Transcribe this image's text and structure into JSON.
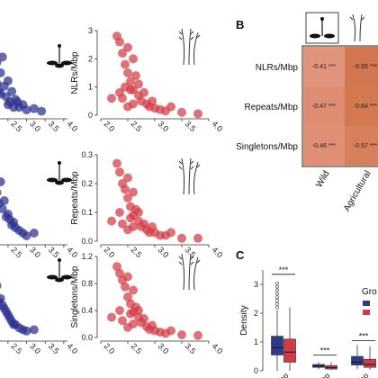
{
  "panels": {
    "b_label": "B",
    "c_label": "C"
  },
  "chart_data": [
    {
      "id": "wild_nlrs",
      "type": "scatter",
      "series": [
        {
          "color": "#2b2f8f",
          "points": [
            [
              2.0,
              1.8
            ],
            [
              2.1,
              2.6
            ],
            [
              2.15,
              1.4
            ],
            [
              2.2,
              2.0
            ],
            [
              2.25,
              0.9
            ],
            [
              2.3,
              1.6
            ],
            [
              2.35,
              2.2
            ],
            [
              2.4,
              1.1
            ],
            [
              2.45,
              0.7
            ],
            [
              2.5,
              1.3
            ],
            [
              2.55,
              0.5
            ],
            [
              2.6,
              0.9
            ],
            [
              2.7,
              0.6
            ],
            [
              2.8,
              0.3
            ],
            [
              2.9,
              0.4
            ],
            [
              3.0,
              0.2
            ],
            [
              3.2,
              0.25
            ],
            [
              3.4,
              0.15
            ],
            [
              2.05,
              3.0
            ],
            [
              2.2,
              1.2
            ],
            [
              2.3,
              0.8
            ],
            [
              2.5,
              0.4
            ],
            [
              2.65,
              0.3
            ],
            [
              2.75,
              0.5
            ]
          ]
        }
      ],
      "x_ticks": [
        "2.5",
        "3.0",
        "3.5",
        "4.0"
      ]
    },
    {
      "id": "agri_nlrs",
      "type": "scatter",
      "ylabel": "NLRs/Mbp",
      "ylim": [
        0,
        3
      ],
      "y_ticks": [
        "0",
        "1",
        "2",
        "3"
      ],
      "xlim": [
        2.0,
        4.0
      ],
      "x_ticks": [
        "2.0",
        "2.5",
        "3.0",
        "3.5",
        "4.0"
      ],
      "series": [
        {
          "color": "#d23b45",
          "points": [
            [
              2.3,
              2.8
            ],
            [
              2.35,
              2.6
            ],
            [
              2.4,
              2.2
            ],
            [
              2.45,
              1.8
            ],
            [
              2.5,
              2.4
            ],
            [
              2.5,
              1.5
            ],
            [
              2.55,
              1.2
            ],
            [
              2.6,
              2.0
            ],
            [
              2.6,
              0.9
            ],
            [
              2.65,
              1.4
            ],
            [
              2.7,
              0.7
            ],
            [
              2.7,
              1.1
            ],
            [
              2.75,
              0.5
            ],
            [
              2.8,
              0.8
            ],
            [
              2.85,
              0.4
            ],
            [
              2.9,
              0.3
            ],
            [
              3.0,
              0.25
            ],
            [
              3.1,
              0.2
            ],
            [
              3.2,
              0.15
            ],
            [
              3.3,
              0.3
            ],
            [
              3.5,
              0.1
            ],
            [
              3.8,
              0.05
            ],
            [
              2.4,
              0.6
            ],
            [
              2.5,
              0.3
            ],
            [
              2.55,
              0.9
            ],
            [
              2.45,
              1.0
            ],
            [
              2.35,
              0.8
            ],
            [
              2.6,
              0.4
            ],
            [
              2.2,
              0.6
            ],
            [
              2.95,
              0.5
            ]
          ]
        }
      ]
    },
    {
      "id": "wild_repeats",
      "type": "scatter",
      "x_ticks": [
        "2.5",
        "3.0",
        "3.5",
        "4.0"
      ],
      "series": [
        {
          "color": "#2b2f8f",
          "points": [
            [
              2.0,
              0.25
            ],
            [
              2.1,
              0.3
            ],
            [
              2.15,
              0.2
            ],
            [
              2.2,
              0.18
            ],
            [
              2.3,
              0.22
            ],
            [
              2.35,
              0.12
            ],
            [
              2.4,
              0.15
            ],
            [
              2.5,
              0.1
            ],
            [
              2.55,
              0.08
            ],
            [
              2.6,
              0.06
            ],
            [
              2.7,
              0.05
            ],
            [
              2.8,
              0.04
            ],
            [
              2.9,
              0.03
            ],
            [
              3.0,
              0.02
            ],
            [
              3.2,
              0.03
            ],
            [
              2.25,
              0.14
            ],
            [
              2.45,
              0.09
            ],
            [
              2.65,
              0.07
            ]
          ]
        }
      ]
    },
    {
      "id": "agri_repeats",
      "type": "scatter",
      "ylabel": "Repeats/Mbp",
      "ylim": [
        0,
        0.3
      ],
      "y_ticks": [
        "0.0",
        "0.1",
        "0.2",
        "0.3"
      ],
      "xlim": [
        2.0,
        4.0
      ],
      "x_ticks": [
        "2.0",
        "2.5",
        "3.0",
        "3.5",
        "4.0"
      ],
      "series": [
        {
          "color": "#d23b45",
          "points": [
            [
              2.3,
              0.27
            ],
            [
              2.35,
              0.24
            ],
            [
              2.4,
              0.2
            ],
            [
              2.45,
              0.18
            ],
            [
              2.5,
              0.22
            ],
            [
              2.5,
              0.15
            ],
            [
              2.55,
              0.12
            ],
            [
              2.6,
              0.17
            ],
            [
              2.6,
              0.09
            ],
            [
              2.65,
              0.11
            ],
            [
              2.7,
              0.07
            ],
            [
              2.7,
              0.1
            ],
            [
              2.75,
              0.05
            ],
            [
              2.8,
              0.06
            ],
            [
              2.85,
              0.04
            ],
            [
              2.9,
              0.03
            ],
            [
              3.0,
              0.03
            ],
            [
              3.1,
              0.02
            ],
            [
              3.2,
              0.02
            ],
            [
              3.3,
              0.03
            ],
            [
              3.5,
              0.01
            ],
            [
              3.8,
              0.01
            ],
            [
              2.4,
              0.06
            ],
            [
              2.5,
              0.04
            ],
            [
              2.55,
              0.08
            ],
            [
              2.35,
              0.1
            ],
            [
              2.6,
              0.05
            ],
            [
              2.2,
              0.07
            ],
            [
              2.95,
              0.05
            ]
          ]
        }
      ]
    },
    {
      "id": "wild_singletons",
      "type": "scatter",
      "x_ticks": [
        "2.5",
        "3.0",
        "3.5",
        "4.0"
      ],
      "series": [
        {
          "color": "#2b2f8f",
          "points": [
            [
              2.0,
              0.9
            ],
            [
              2.1,
              1.1
            ],
            [
              2.15,
              0.7
            ],
            [
              2.2,
              0.8
            ],
            [
              2.3,
              0.6
            ],
            [
              2.35,
              0.5
            ],
            [
              2.4,
              0.45
            ],
            [
              2.5,
              0.35
            ],
            [
              2.55,
              0.3
            ],
            [
              2.6,
              0.25
            ],
            [
              2.7,
              0.2
            ],
            [
              2.8,
              0.15
            ],
            [
              2.9,
              0.12
            ],
            [
              3.0,
              0.1
            ],
            [
              3.2,
              0.12
            ],
            [
              2.25,
              0.55
            ],
            [
              2.45,
              0.4
            ],
            [
              2.65,
              0.2
            ]
          ]
        }
      ]
    },
    {
      "id": "agri_singletons",
      "type": "scatter",
      "ylabel": "Singletons/Mbp",
      "ylim": [
        0,
        1.2
      ],
      "y_ticks": [
        "0.0",
        "0.4",
        "0.8",
        "1.2"
      ],
      "xlim": [
        2.0,
        4.0
      ],
      "x_ticks": [
        "2.0",
        "2.5",
        "3.0",
        "3.5",
        "4.0"
      ],
      "series": [
        {
          "color": "#d23b45",
          "points": [
            [
              2.3,
              1.05
            ],
            [
              2.35,
              0.95
            ],
            [
              2.4,
              0.85
            ],
            [
              2.45,
              0.75
            ],
            [
              2.5,
              0.9
            ],
            [
              2.5,
              0.6
            ],
            [
              2.55,
              0.5
            ],
            [
              2.6,
              0.7
            ],
            [
              2.6,
              0.38
            ],
            [
              2.65,
              0.45
            ],
            [
              2.7,
              0.3
            ],
            [
              2.7,
              0.4
            ],
            [
              2.75,
              0.22
            ],
            [
              2.8,
              0.28
            ],
            [
              2.85,
              0.16
            ],
            [
              2.9,
              0.12
            ],
            [
              3.0,
              0.1
            ],
            [
              3.1,
              0.08
            ],
            [
              3.2,
              0.06
            ],
            [
              3.3,
              0.1
            ],
            [
              3.5,
              0.04
            ],
            [
              3.8,
              0.03
            ],
            [
              2.4,
              0.25
            ],
            [
              2.5,
              0.15
            ],
            [
              2.55,
              0.35
            ],
            [
              2.35,
              0.4
            ],
            [
              2.6,
              0.2
            ],
            [
              2.2,
              0.3
            ],
            [
              2.95,
              0.18
            ]
          ]
        }
      ]
    },
    {
      "id": "heatmap_b",
      "type": "heatmap",
      "rows": [
        "NLRs/Mbp",
        "Repeats/Mbp",
        "Singletons/Mbp"
      ],
      "cols": [
        "Wild",
        "Agricultural"
      ],
      "cells": [
        [
          "-0.41 ***",
          "-0.65 ***"
        ],
        [
          "-0.47 ***",
          "-0.64 ***"
        ],
        [
          "-0.46 ***",
          "-0.57 ***"
        ]
      ],
      "values": [
        [
          -0.41,
          -0.65
        ],
        [
          -0.47,
          -0.64
        ],
        [
          -0.46,
          -0.57
        ]
      ],
      "colors": [
        [
          "#e0947c",
          "#d2764f"
        ],
        [
          "#de8d73",
          "#d3794f"
        ],
        [
          "#df8f75",
          "#d6805c"
        ]
      ]
    },
    {
      "id": "boxplot_c",
      "type": "box",
      "ylabel": "Density",
      "ylim": [
        0,
        3.5
      ],
      "y_ticks": [
        "0",
        "1",
        "2",
        "3"
      ],
      "categories": [
        "/Mbp",
        "/Mbp",
        "/Mbp"
      ],
      "legend_title": "Gro",
      "significance": [
        "***",
        "***",
        "***"
      ],
      "series": [
        {
          "color": "#2e3a8c",
          "boxes": [
            {
              "min": 0,
              "q1": 0.55,
              "median": 0.8,
              "q3": 1.2,
              "max": 2.1
            },
            {
              "min": 0.05,
              "q1": 0.12,
              "median": 0.16,
              "q3": 0.22,
              "max": 0.3
            },
            {
              "min": 0.05,
              "q1": 0.2,
              "median": 0.3,
              "q3": 0.5,
              "max": 0.9
            }
          ]
        },
        {
          "color": "#d23b45",
          "boxes": [
            {
              "min": 0,
              "q1": 0.3,
              "median": 0.65,
              "q3": 1.1,
              "max": 2.2
            },
            {
              "min": 0.03,
              "q1": 0.06,
              "median": 0.11,
              "q3": 0.18,
              "max": 0.3
            },
            {
              "min": 0.03,
              "q1": 0.12,
              "median": 0.22,
              "q3": 0.4,
              "max": 0.85
            }
          ]
        }
      ]
    }
  ]
}
